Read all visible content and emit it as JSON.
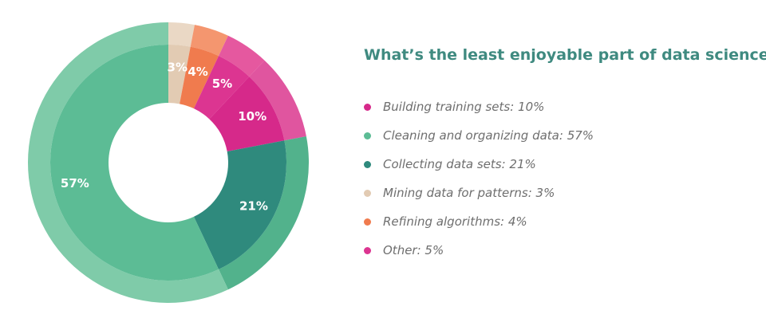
{
  "chart_data": {
    "type": "pie",
    "title": "What’s the least enjoyable part of data science?",
    "legend_position": "right",
    "slices": [
      {
        "name": "Building training sets",
        "value": 10,
        "label": "10%",
        "color": "#d6298a",
        "outer_color": "#e0559f"
      },
      {
        "name": "Cleaning and organizing data",
        "value": 57,
        "label": "57%",
        "color": "#5cbc95",
        "outer_color": "#7fcba9"
      },
      {
        "name": "Collecting data sets",
        "value": 21,
        "label": "21%",
        "color": "#2f8a7d",
        "outer_color": "#52b28c"
      },
      {
        "name": "Mining data for patterns",
        "value": 3,
        "label": "3%",
        "color": "#e2cbb3",
        "outer_color": "#ead8c5"
      },
      {
        "name": "Refining algorithms",
        "value": 4,
        "label": "4%",
        "color": "#f07b4e",
        "outer_color": "#f4966f"
      },
      {
        "name": "Other",
        "value": 5,
        "label": "5%",
        "color": "#dc3591",
        "outer_color": "#e5589f"
      }
    ],
    "legend_entries": [
      "Building training sets: 10%",
      "Cleaning and organizing data: 57%",
      "Collecting data sets: 21%",
      "Mining data for patterns: 3%",
      "Refining algorithms: 4%",
      "Other: 5%"
    ]
  }
}
